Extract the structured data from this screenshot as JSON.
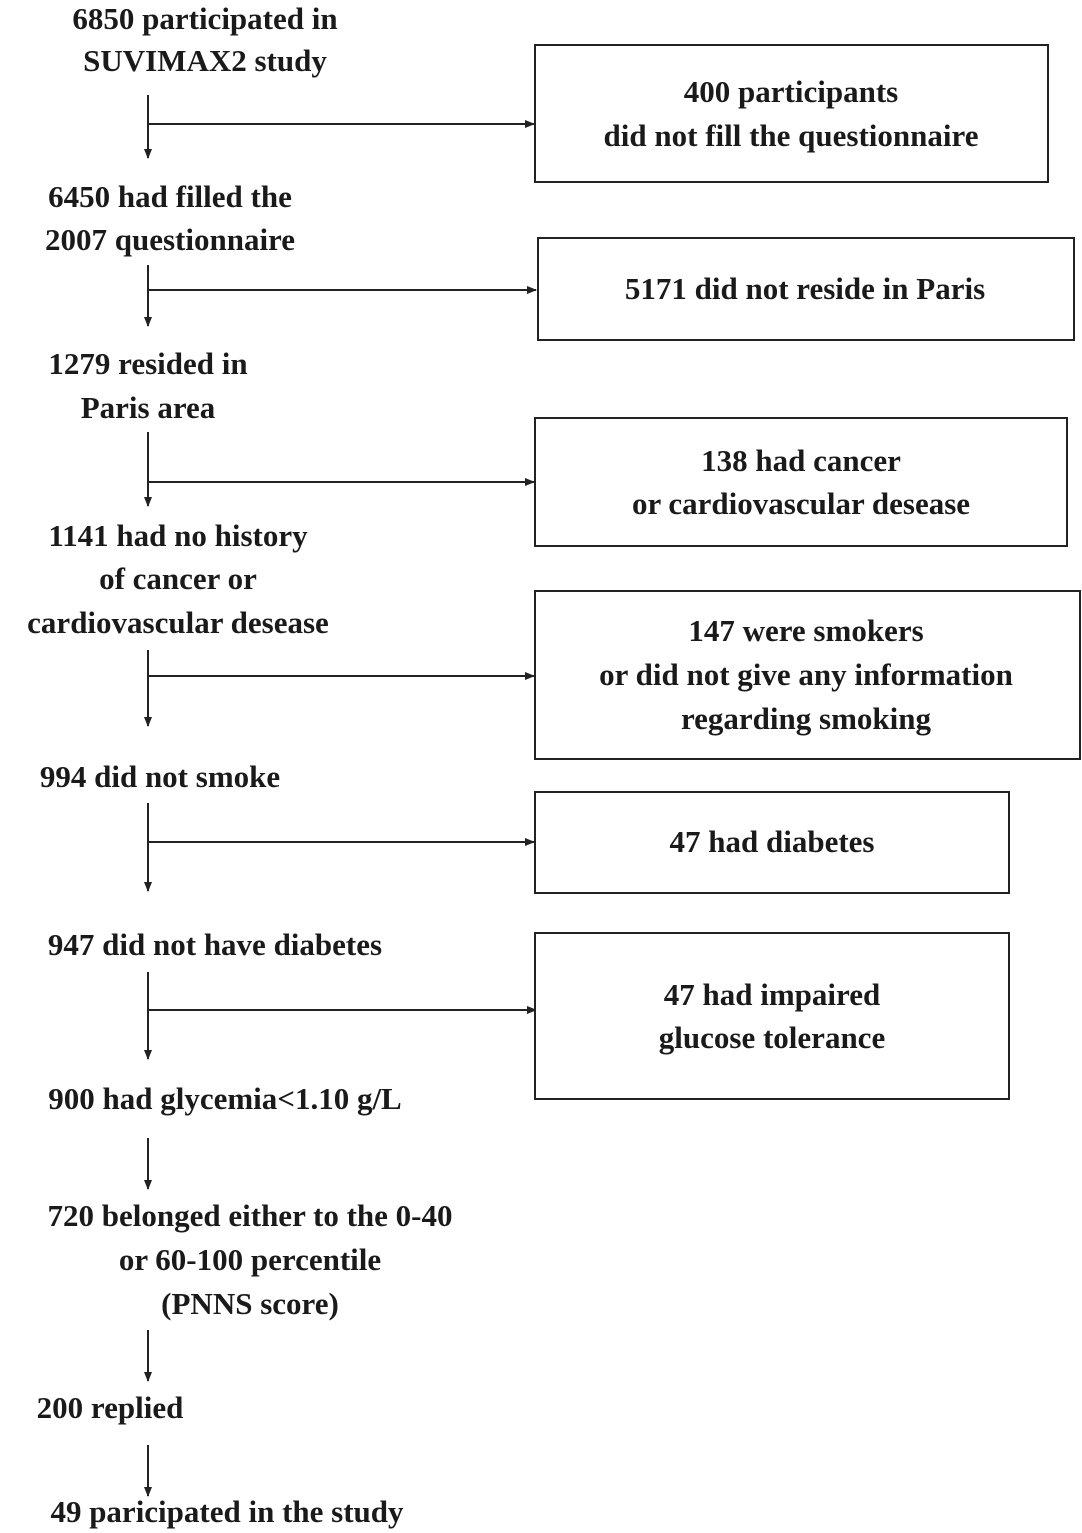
{
  "nodes": [
    {
      "lines": [
        "6850 participated in",
        "SUVIMAX2 study"
      ]
    },
    {
      "lines": [
        "6450 had filled the",
        "2007 questionnaire"
      ]
    },
    {
      "lines": [
        "1279 resided in",
        "Paris area"
      ]
    },
    {
      "lines": [
        "1141 had no history",
        "of  cancer or",
        "cardiovascular desease"
      ]
    },
    {
      "lines": [
        "994 did not smoke"
      ]
    },
    {
      "lines": [
        "947 did not have diabetes"
      ]
    },
    {
      "lines": [
        "900 had glycemia<1.10 g/L"
      ]
    },
    {
      "lines": [
        "720 belonged either to the 0-40",
        "or 60-100 percentile",
        "(PNNS score)"
      ]
    },
    {
      "lines": [
        "200 replied"
      ]
    },
    {
      "lines": [
        "49 paricipated in the study"
      ]
    }
  ],
  "exclusions": [
    {
      "lines": [
        "400 participants",
        "did not fill the questionnaire"
      ]
    },
    {
      "lines": [
        "5171 did not reside in Paris"
      ]
    },
    {
      "lines": [
        "138 had cancer",
        "or cardiovascular desease"
      ]
    },
    {
      "lines": [
        "147 were smokers",
        "or did not give any information",
        "regarding smoking"
      ]
    },
    {
      "lines": [
        "47 had diabetes"
      ]
    },
    {
      "lines": [
        "47 had impaired",
        "glucose tolerance"
      ]
    }
  ]
}
